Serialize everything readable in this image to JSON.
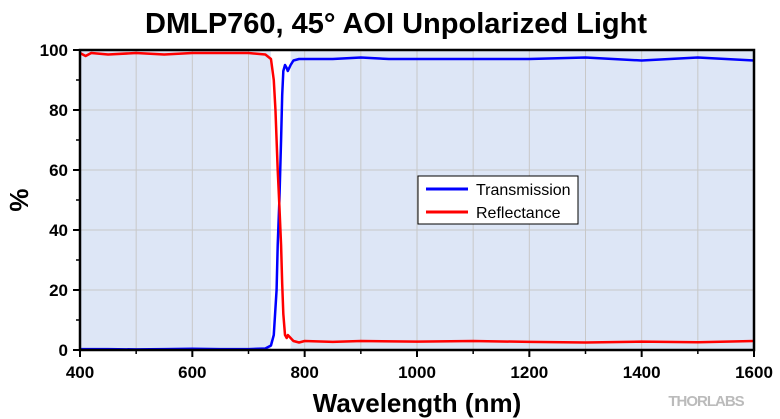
{
  "chart_data": {
    "type": "line",
    "title": "DMLP760, 45° AOI Unpolarized Light",
    "xlabel": "Wavelength (nm)",
    "ylabel": "%",
    "xlim": [
      400,
      1600
    ],
    "ylim": [
      0,
      100
    ],
    "xticks": [
      400,
      600,
      800,
      1000,
      1200,
      1400,
      1600
    ],
    "yticks": [
      0,
      20,
      40,
      60,
      80,
      100
    ],
    "grid": true,
    "shaded_regions": [
      [
        400,
        740
      ],
      [
        775,
        1600
      ]
    ],
    "shade_color": "#dde6f6",
    "legend_position": "center-right",
    "series": [
      {
        "name": "Transmission",
        "color": "#0000ff",
        "x": [
          400,
          450,
          500,
          550,
          600,
          650,
          700,
          730,
          740,
          745,
          750,
          752,
          755,
          758,
          760,
          762,
          765,
          768,
          770,
          775,
          780,
          790,
          800,
          850,
          900,
          950,
          1000,
          1100,
          1200,
          1300,
          1400,
          1500,
          1600
        ],
        "y": [
          0.3,
          0.3,
          0.2,
          0.3,
          0.4,
          0.3,
          0.3,
          0.5,
          1.5,
          5,
          20,
          35,
          50,
          70,
          85,
          93,
          95,
          94,
          93,
          95,
          96.5,
          97,
          97,
          97,
          97.5,
          97,
          97,
          97,
          97,
          97.5,
          96.5,
          97.5,
          96.5
        ]
      },
      {
        "name": "Reflectance",
        "color": "#ff0000",
        "x": [
          400,
          410,
          420,
          450,
          500,
          550,
          600,
          650,
          700,
          730,
          740,
          745,
          748,
          750,
          752,
          755,
          758,
          760,
          762,
          765,
          768,
          770,
          775,
          780,
          790,
          800,
          850,
          900,
          1000,
          1100,
          1200,
          1300,
          1400,
          1500,
          1600
        ],
        "y": [
          99,
          98,
          99,
          98.5,
          99,
          98.5,
          99,
          99,
          99,
          98.5,
          97,
          90,
          80,
          70,
          60,
          48,
          35,
          22,
          12,
          5,
          4,
          5,
          4,
          3,
          2.5,
          3,
          2.7,
          3,
          2.8,
          3,
          2.7,
          2.5,
          2.8,
          2.6,
          3
        ]
      }
    ]
  },
  "branding": {
    "logo": "THORLABS"
  }
}
